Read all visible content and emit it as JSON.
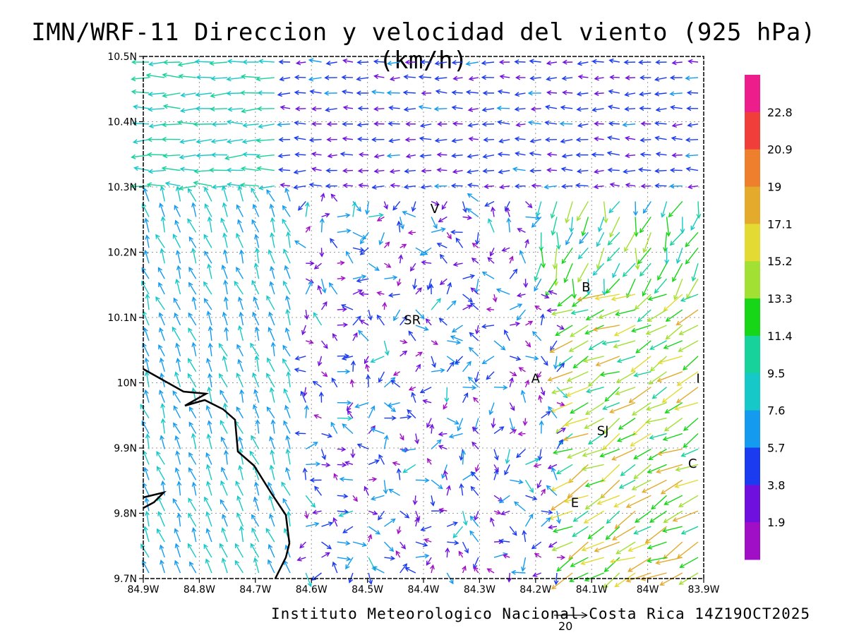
{
  "title": "IMN/WRF-11 Direccion y velocidad del viento (925 hPa)(km/h)",
  "footer": "Instituto Meteorologico Nacional Costa Rica 14Z19OCT2025",
  "reference_vector_label": "20",
  "axes": {
    "lon_labels": [
      "84.9W",
      "84.8W",
      "84.7W",
      "84.6W",
      "84.5W",
      "84.4W",
      "84.3W",
      "84.2W",
      "84.1W",
      "84W",
      "83.9W"
    ],
    "lat_labels": [
      "10.5N",
      "10.4N",
      "10.3N",
      "10.2N",
      "10.1N",
      "10N",
      "9.9N",
      "9.8N",
      "9.7N"
    ],
    "lon_range": [
      -84.9,
      -83.9
    ],
    "lat_range": [
      9.7,
      10.5
    ]
  },
  "places": [
    {
      "label": "V",
      "lon": -84.38,
      "lat": 10.26
    },
    {
      "label": "SR",
      "lon": -84.42,
      "lat": 10.09
    },
    {
      "label": "B",
      "lon": -84.11,
      "lat": 10.14
    },
    {
      "label": "A",
      "lon": -84.2,
      "lat": 10.0
    },
    {
      "label": "I",
      "lon": -83.91,
      "lat": 10.0
    },
    {
      "label": "SJ",
      "lon": -84.08,
      "lat": 9.92
    },
    {
      "label": "C",
      "lon": -83.92,
      "lat": 9.87
    },
    {
      "label": "E",
      "lon": -84.13,
      "lat": 9.81
    }
  ],
  "colorbar": {
    "labels": [
      "22.8",
      "20.9",
      "19",
      "17.1",
      "15.2",
      "13.3",
      "11.4",
      "9.5",
      "7.6",
      "5.7",
      "3.8",
      "1.9"
    ],
    "colors": [
      "#ee1d8c",
      "#f03f3a",
      "#ee7f2c",
      "#e3aa2c",
      "#e3da33",
      "#a2e033",
      "#17d517",
      "#17d29a",
      "#17c8c8",
      "#149bf0",
      "#1b3bf0",
      "#7010de",
      "#a00ec6"
    ]
  },
  "wind_field_note": ""
}
